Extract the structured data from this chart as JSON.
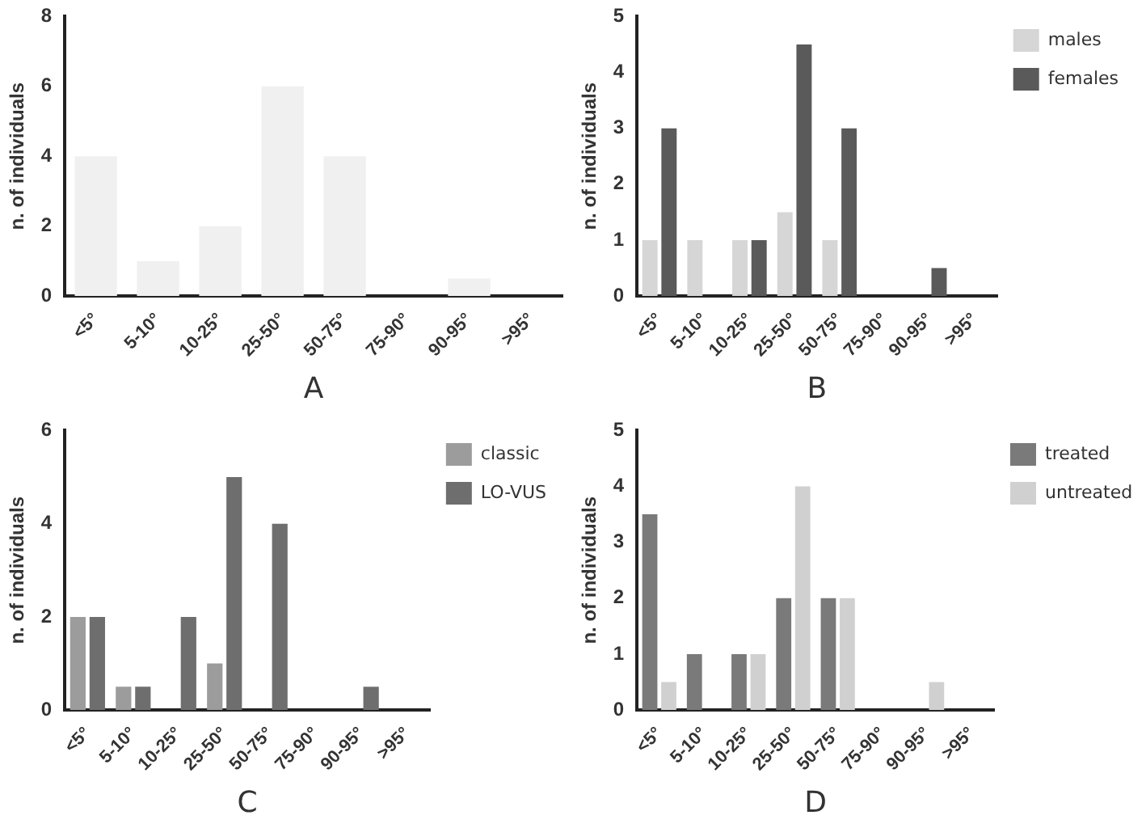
{
  "chart_data": [
    {
      "type": "bar",
      "xlabel": "A",
      "ylabel": "n. of individuals",
      "categories": [
        "<5°",
        "5-10°",
        "10-25°",
        "25-50°",
        "50-75°",
        "75-90°",
        "90-95°",
        ">95°"
      ],
      "series": [
        {
          "color": "#f0f0f0",
          "values": [
            4,
            1,
            2,
            6,
            4,
            0,
            0.5,
            0
          ]
        }
      ],
      "ylim": [
        0,
        8
      ],
      "yticks": [
        0,
        2,
        4,
        6,
        8
      ],
      "grid": false,
      "legend": false
    },
    {
      "type": "bar",
      "xlabel": "B",
      "ylabel": "n. of individuals",
      "categories": [
        "<5°",
        "5-10°",
        "10-25°",
        "25-50°",
        "50-75°",
        "75-90°",
        "90-95°",
        ">95°"
      ],
      "series": [
        {
          "name": "males",
          "color": "#d6d6d6",
          "values": [
            1,
            1,
            1,
            1.5,
            1,
            0,
            0,
            0
          ]
        },
        {
          "name": "females",
          "color": "#5a5a5a",
          "values": [
            3,
            0,
            1,
            4.5,
            3,
            0,
            0.5,
            0
          ]
        }
      ],
      "ylim": [
        0,
        5
      ],
      "yticks": [
        0,
        1,
        2,
        3,
        4,
        5
      ],
      "grid": false,
      "legend": "right"
    },
    {
      "type": "bar",
      "xlabel": "C",
      "ylabel": "n. of individuals",
      "categories": [
        "<5°",
        "5-10°",
        "10-25°",
        "25-50°",
        "50-75°",
        "75-90°",
        "90-95°",
        ">95°"
      ],
      "series": [
        {
          "name": "classic",
          "color": "#9c9c9c",
          "values": [
            2,
            0.5,
            0,
            1,
            0,
            0,
            0,
            0
          ]
        },
        {
          "name": "LO-VUS",
          "color": "#6e6e6e",
          "values": [
            2,
            0.5,
            2,
            5,
            4,
            0,
            0.5,
            0
          ]
        }
      ],
      "ylim": [
        0,
        6
      ],
      "yticks": [
        0,
        2,
        4,
        6
      ],
      "grid": false,
      "legend": "right"
    },
    {
      "type": "bar",
      "xlabel": "D",
      "ylabel": "n. of individuals",
      "categories": [
        "<5°",
        "5-10°",
        "10-25°",
        "25-50°",
        "50-75°",
        "75-90°",
        "90-95°",
        ">95°"
      ],
      "series": [
        {
          "name": "treated",
          "color": "#7a7a7a",
          "values": [
            3.5,
            1,
            1,
            2,
            2,
            0,
            0,
            0
          ]
        },
        {
          "name": "untreated",
          "color": "#d0d0d0",
          "values": [
            0.5,
            0,
            1,
            4,
            2,
            0,
            0.5,
            0
          ]
        }
      ],
      "ylim": [
        0,
        5
      ],
      "yticks": [
        0,
        1,
        2,
        3,
        4,
        5
      ],
      "grid": false,
      "legend": "right"
    }
  ]
}
